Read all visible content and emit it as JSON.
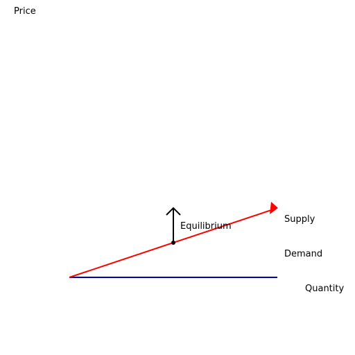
{
  "labels": {
    "price_axis": "Price",
    "quantity_axis": "Quantity",
    "supply": "Supply",
    "demand": "Demand",
    "equilibrium": "Equilibrium"
  },
  "colors": {
    "supply": "#ff0000",
    "demand": "#0000aa",
    "equilibrium_arrow": "#000000",
    "text": "#000000",
    "background": "#ffffff"
  }
}
